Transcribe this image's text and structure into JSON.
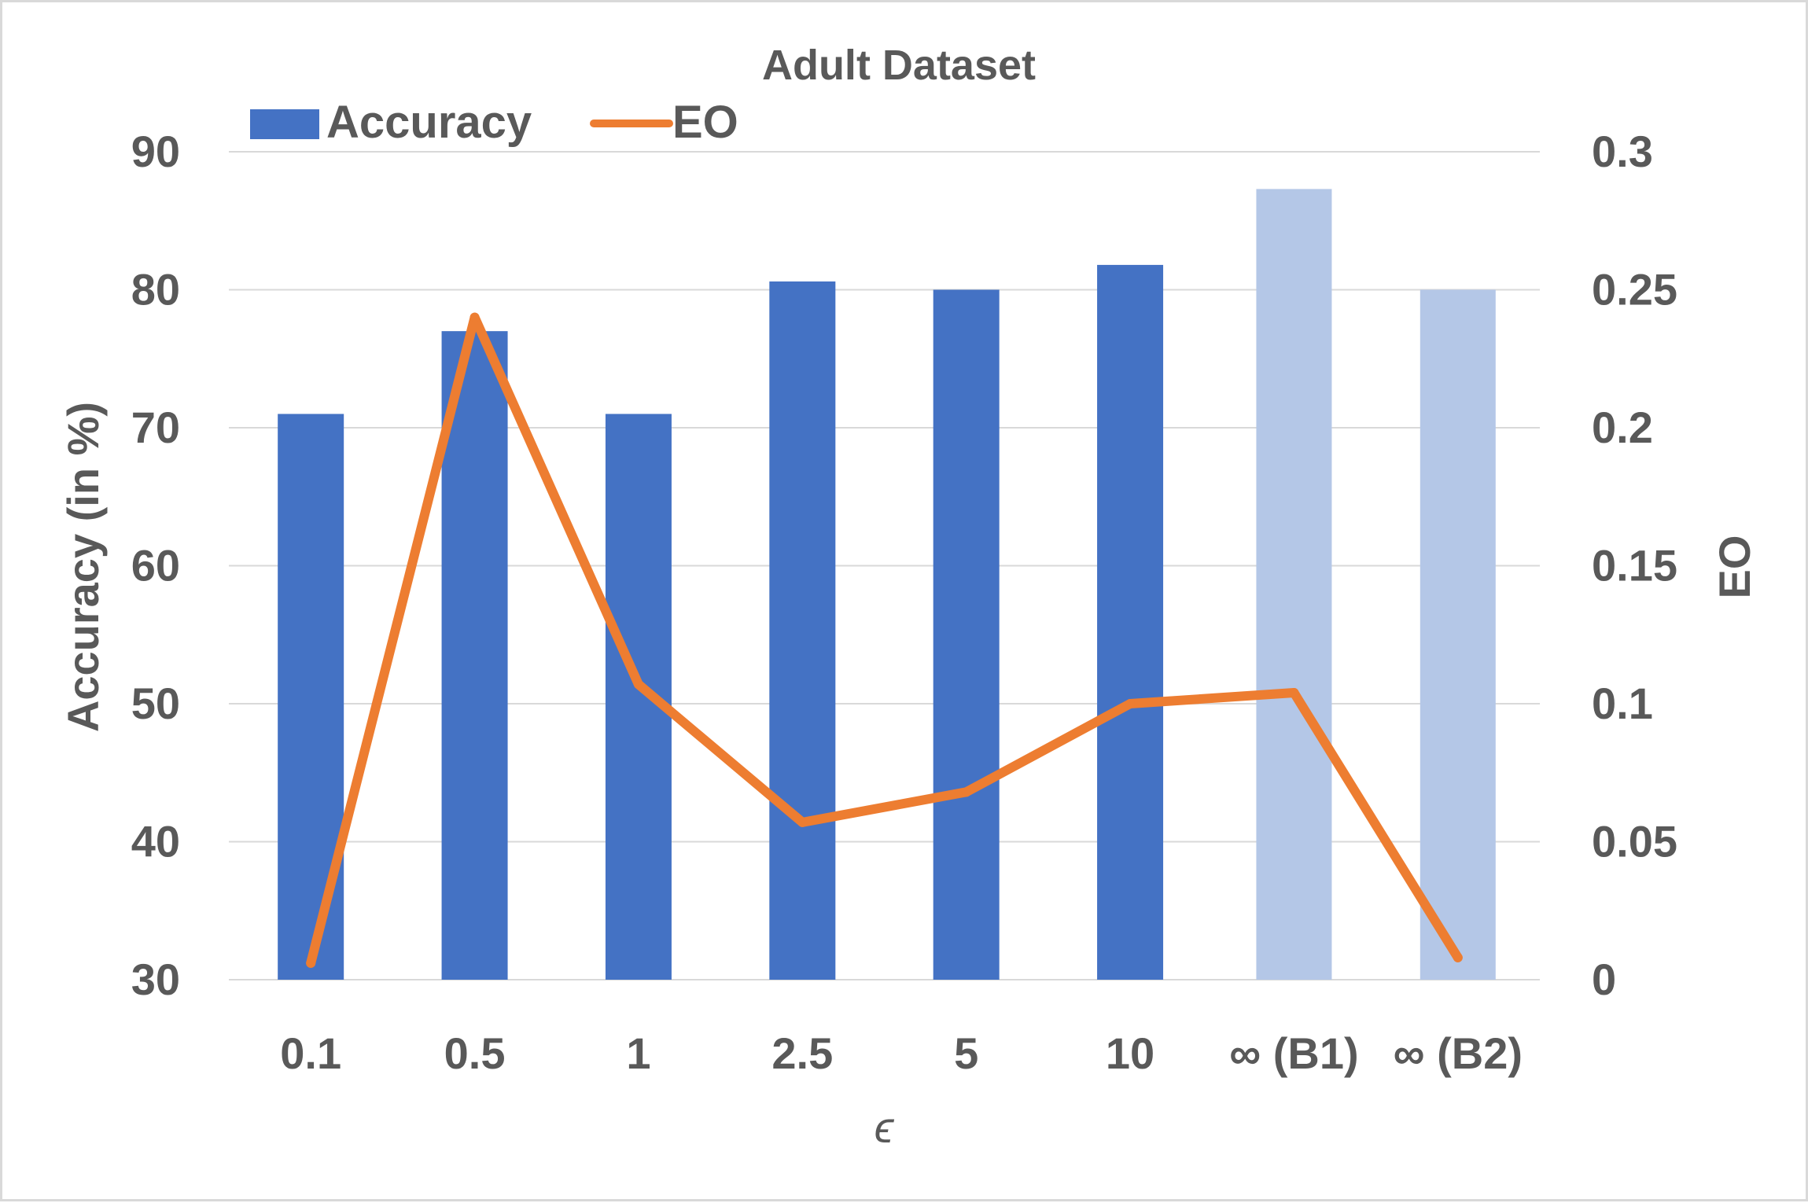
{
  "chart_data": {
    "type": "bar",
    "title": "Adult Dataset",
    "categories": [
      "0.1",
      "0.5",
      "1",
      "2.5",
      "5",
      "10",
      "∞ (B1)",
      "∞ (B2)"
    ],
    "xlabel": "ϵ",
    "ylabel": "Accuracy (in %)",
    "ylabel_right": "EO",
    "ylim": [
      30,
      90
    ],
    "ylim_right": [
      0,
      0.3
    ],
    "yticks": [
      "90",
      "80",
      "70",
      "60",
      "50",
      "40",
      "30"
    ],
    "yticks_right": [
      "0.3",
      "0.25",
      "0.2",
      "0.15",
      "0.1",
      "0.05",
      "0"
    ],
    "grid": true,
    "legend_position": "top",
    "series": [
      {
        "name": "Accuracy",
        "type": "bar",
        "axis": "left",
        "values": [
          71,
          77,
          71,
          80.6,
          80,
          81.8,
          87.3,
          80
        ],
        "color": "#4472c4",
        "highlight_color": "#b4c7e7",
        "highlight_indices": [
          6,
          7
        ]
      },
      {
        "name": "EO",
        "type": "line",
        "axis": "right",
        "values": [
          0.006,
          0.24,
          0.107,
          0.057,
          0.068,
          0.1,
          0.104,
          0.008
        ],
        "color": "#ed7d31"
      }
    ]
  }
}
